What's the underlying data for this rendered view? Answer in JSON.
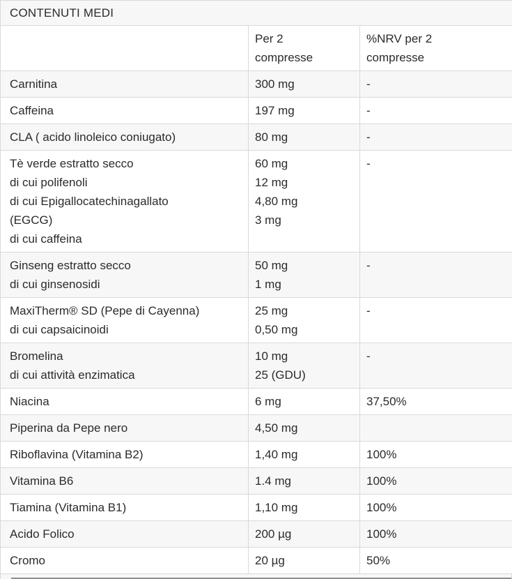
{
  "colors": {
    "border": "#d9d9d9",
    "stripe": "#f7f7f7",
    "row-bg": "#ffffff",
    "text": "#2b2b2b",
    "cutoff-line": "#8d8d8d"
  },
  "table": {
    "title": "CONTENUTI MEDI",
    "columns": {
      "name": "",
      "per2": "Per 2\ncompresse",
      "nrv": "%NRV per 2\ncompresse"
    },
    "rows": [
      {
        "name": "Carnitina",
        "per2": "300 mg",
        "nrv": "-"
      },
      {
        "name": "Caffeina",
        "per2": "197 mg",
        "nrv": "-"
      },
      {
        "name": "CLA ( acido linoleico coniugato)",
        "per2": "80 mg",
        "nrv": "-"
      },
      {
        "name": "Tè verde estratto secco\ndi cui polifenoli\ndi cui Epigallocatechinagallato\n(EGCG)\ndi cui caffeina",
        "per2": "60 mg\n12 mg\n4,80 mg\n3 mg",
        "nrv": "-"
      },
      {
        "name": "Ginseng estratto secco\ndi cui ginsenosidi",
        "per2": "50 mg\n1 mg",
        "nrv": "-"
      },
      {
        "name": "MaxiTherm® SD (Pepe di Cayenna)\ndi cui capsaicinoidi",
        "per2": "25 mg\n0,50 mg",
        "nrv": "-"
      },
      {
        "name": "Bromelina\ndi cui attività enzimatica",
        "per2": "10 mg\n25 (GDU)",
        "nrv": "-"
      },
      {
        "name": "Niacina",
        "per2": "6 mg",
        "nrv": "37,50%"
      },
      {
        "name": "Piperina da Pepe nero",
        "per2": "4,50 mg",
        "nrv": ""
      },
      {
        "name": "Riboflavina (Vitamina B2)",
        "per2": "1,40 mg",
        "nrv": "100%"
      },
      {
        "name": "Vitamina B6",
        "per2": "1.4 mg",
        "nrv": "100%"
      },
      {
        "name": "Tiamina (Vitamina B1)",
        "per2": "1,10 mg",
        "nrv": "100%"
      },
      {
        "name": "Acido Folico",
        "per2": "200 µg",
        "nrv": "100%"
      },
      {
        "name": "Cromo",
        "per2": "20 µg",
        "nrv": "50%"
      }
    ]
  }
}
